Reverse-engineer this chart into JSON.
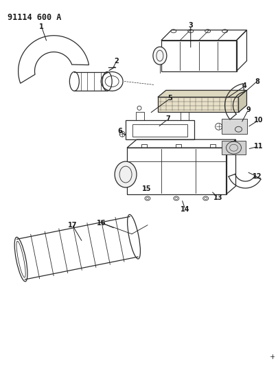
{
  "title": "91114 600 A",
  "bg_color": "#ffffff",
  "line_color": "#2a2a2a",
  "label_color": "#1a1a1a",
  "title_fontsize": 8.5,
  "label_fontsize": 7,
  "fig_width": 4.05,
  "fig_height": 5.33,
  "dpi": 100
}
